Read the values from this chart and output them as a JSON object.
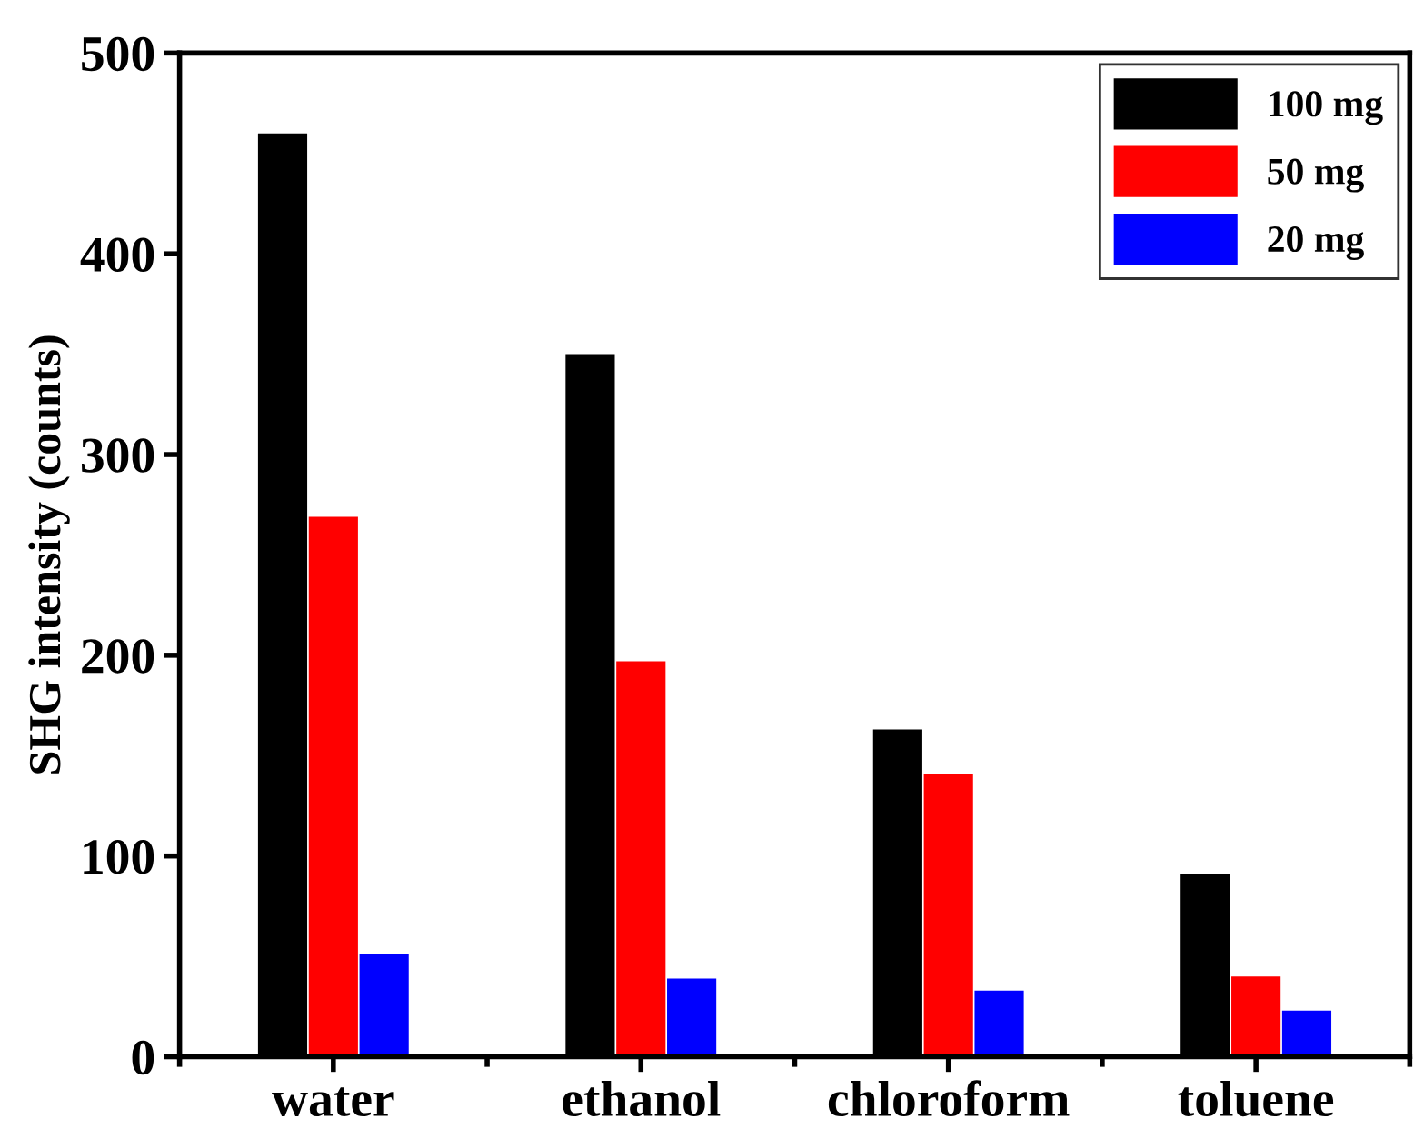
{
  "chart_data": {
    "type": "bar",
    "ylabel": "SHG intensity (counts)",
    "categories": [
      "water",
      "ethanol",
      "chloroform",
      "toluene"
    ],
    "series": [
      {
        "name": "100 mg",
        "color": "#000000",
        "values": [
          460,
          350,
          163,
          91
        ]
      },
      {
        "name": "50 mg",
        "color": "#ff0000",
        "values": [
          269,
          197,
          141,
          40
        ]
      },
      {
        "name": "20 mg",
        "color": "#0000ff",
        "values": [
          51,
          39,
          33,
          23
        ]
      }
    ],
    "ylim": [
      0,
      500
    ],
    "yticks": [
      0,
      100,
      200,
      300,
      400,
      500
    ],
    "grid": false,
    "legend": "top right"
  }
}
